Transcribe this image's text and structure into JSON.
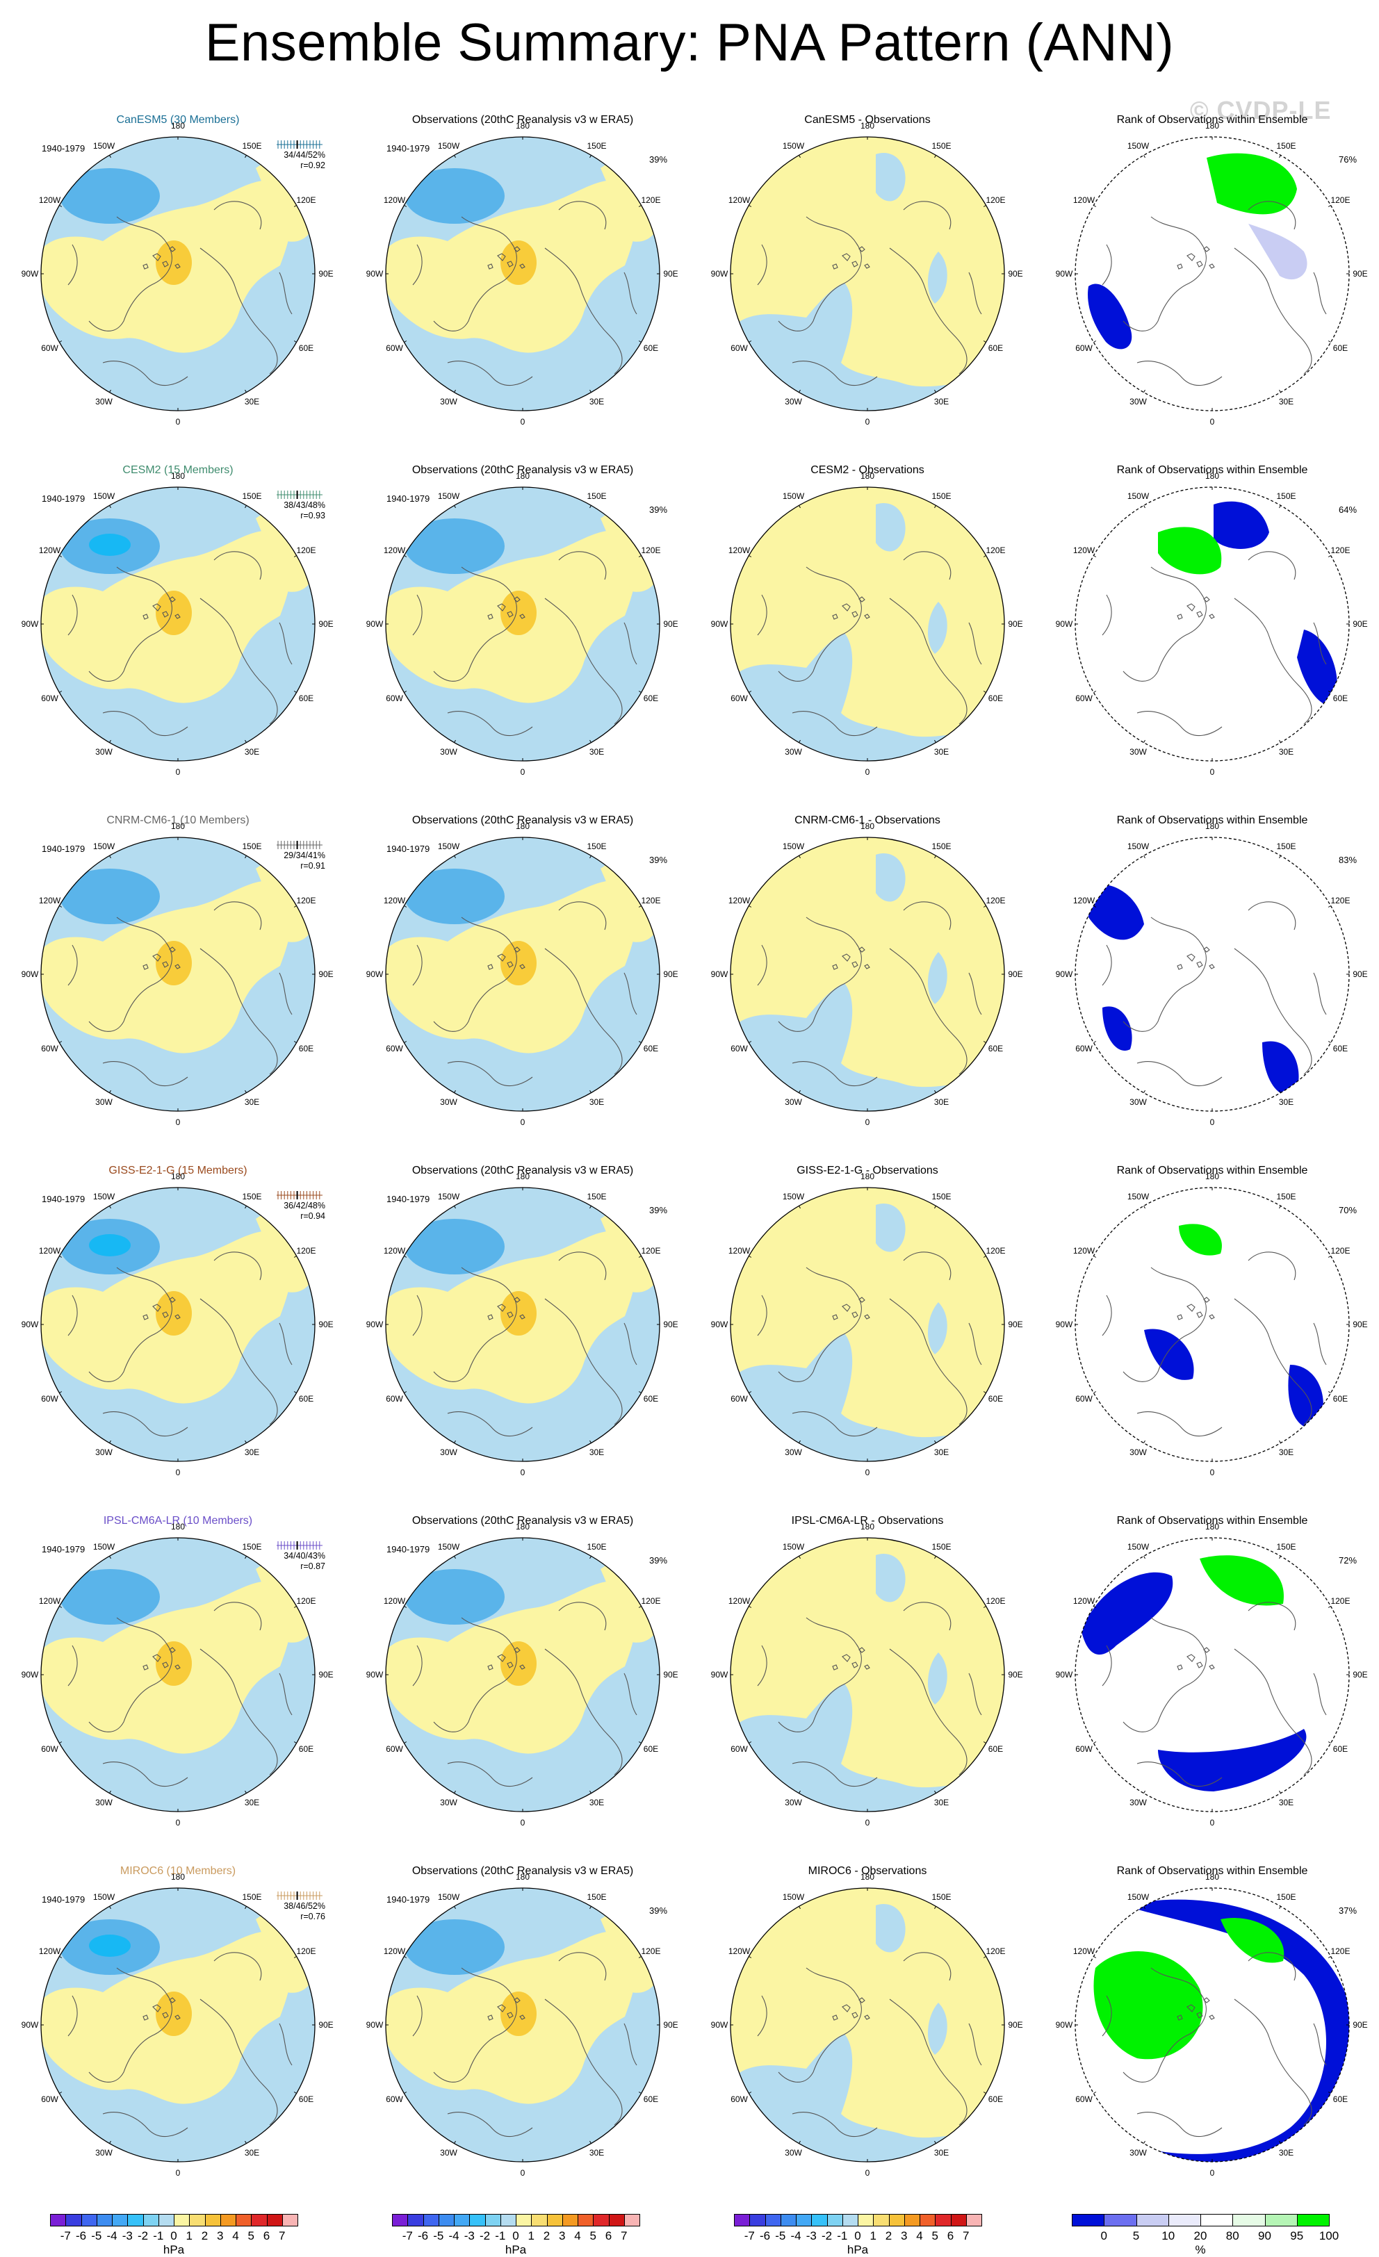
{
  "title": "Ensemble Summary: PNA Pattern (ANN)",
  "watermark": "© CVDP-LE",
  "period": "1940-1979",
  "obs_title": "Observations (20thC Reanalysis v3 w ERA5)",
  "rank_title": "Rank of Observations within Ensemble",
  "obs_pct": "39%",
  "lon_labels": [
    "180",
    "150E",
    "120E",
    "90E",
    "60E",
    "30E",
    "0",
    "30W",
    "60W",
    "90W",
    "120W",
    "150W"
  ],
  "colors": {
    "neg_light": "#b4dcf0",
    "neg_mid": "#5ab4ea",
    "neg_strong": "#17b8f4",
    "pos_light": "#fbf5a3",
    "pos_mid": "#f8cc3a",
    "pos_strong": "#f4b028",
    "rank_dark_blue": "#0010d8",
    "rank_light_blue": "#c9cdf3",
    "rank_green": "#00f200",
    "rank_light_green": "#e6fbe6"
  },
  "rows": [
    {
      "model": "CanESM5 (30 Members)",
      "model_color": "#1a6f95",
      "stats": [
        "34/44/52%",
        "r=0.92"
      ],
      "diff_title": "CanESM5 - Observations",
      "rank_pct": "76%"
    },
    {
      "model": "CESM2 (15 Members)",
      "model_color": "#3f8c6e",
      "stats": [
        "38/43/48%",
        "r=0.93"
      ],
      "diff_title": "CESM2 - Observations",
      "rank_pct": "64%"
    },
    {
      "model": "CNRM-CM6-1 (10 Members)",
      "model_color": "#666666",
      "stats": [
        "29/34/41%",
        "r=0.91"
      ],
      "diff_title": "CNRM-CM6-1 - Observations",
      "rank_pct": "83%"
    },
    {
      "model": "GISS-E2-1-G (15 Members)",
      "model_color": "#9a4a1e",
      "stats": [
        "36/42/48%",
        "r=0.94"
      ],
      "diff_title": "GISS-E2-1-G - Observations",
      "rank_pct": "70%"
    },
    {
      "model": "IPSL-CM6A-LR (10 Members)",
      "model_color": "#6a4ec8",
      "stats": [
        "34/40/43%",
        "r=0.87"
      ],
      "diff_title": "IPSL-CM6A-LR - Observations",
      "rank_pct": "72%"
    },
    {
      "model": "MIROC6 (10 Members)",
      "model_color": "#c99a5e",
      "stats": [
        "38/46/52%",
        "r=0.76"
      ],
      "diff_title": "MIROC6 - Observations",
      "rank_pct": "37%"
    }
  ],
  "colorbar_hpa": {
    "ticks": [
      "-7",
      "-6",
      "-5",
      "-4",
      "-3",
      "-2",
      "-1",
      "0",
      "1",
      "2",
      "3",
      "4",
      "5",
      "6",
      "7"
    ],
    "unit": "hPa",
    "colors": [
      "#7a1fd6",
      "#3a3ee0",
      "#3f66f0",
      "#3d8cf0",
      "#43a8f5",
      "#36c1f9",
      "#7ed2f2",
      "#b4dcf0",
      "#fbf5a3",
      "#f8de72",
      "#f6c23a",
      "#f49a22",
      "#f0602a",
      "#e0282a",
      "#d01616",
      "#f8b4b4"
    ]
  },
  "colorbar_rank": {
    "ticks": [
      "0",
      "5",
      "10",
      "20",
      "80",
      "90",
      "95",
      "100"
    ],
    "unit": "%",
    "colors": [
      "#0010d8",
      "#6c6ff0",
      "#c9cdf3",
      "#eaebfb",
      "#ffffff",
      "#e6fbe6",
      "#b5f5b5",
      "#00f200"
    ]
  }
}
